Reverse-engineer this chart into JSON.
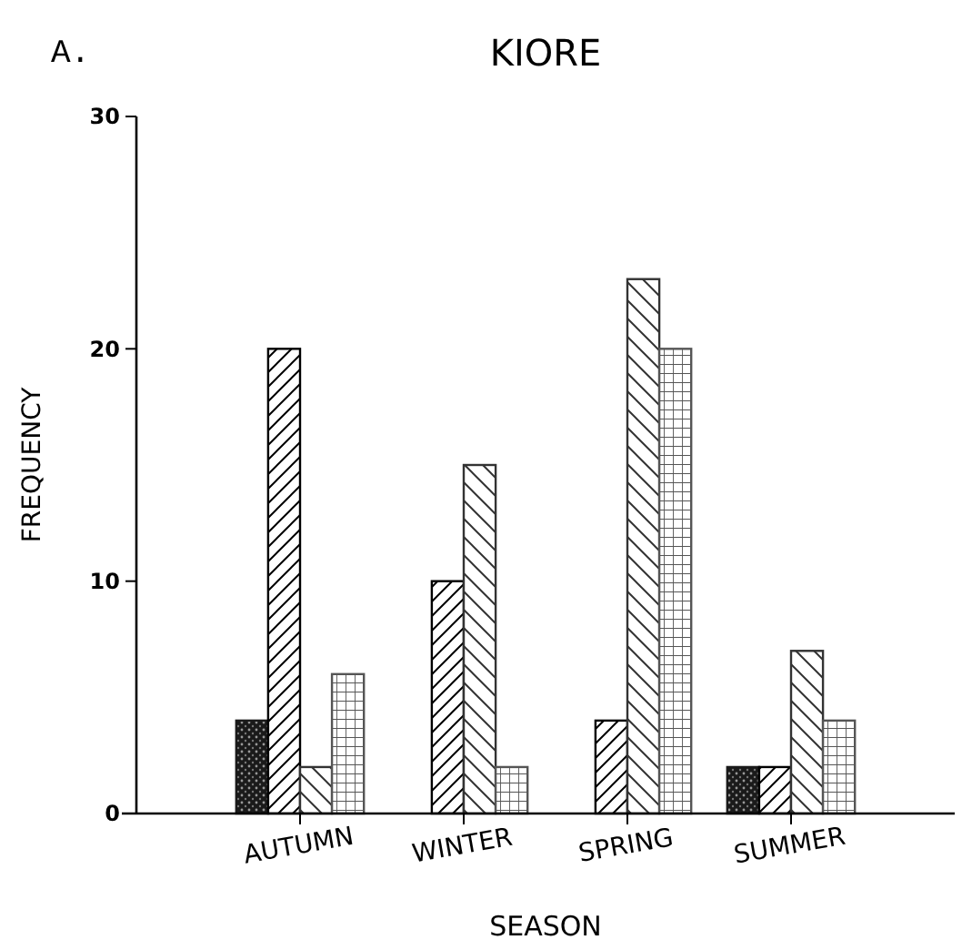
{
  "chart_data": {
    "type": "bar",
    "title": "KIORE",
    "annotations": [
      "A."
    ],
    "xlabel": "SEASON",
    "ylabel": "FREQUENCY",
    "categories": [
      "AUTUMN",
      "WINTER",
      "SPRING",
      "SUMMER"
    ],
    "series": [
      {
        "color": "#1a1a1a",
        "values": [
          4,
          0,
          0,
          2
        ]
      },
      {
        "color": "#000000",
        "values": [
          20,
          10,
          4,
          2
        ]
      },
      {
        "color": "#333333",
        "values": [
          2,
          15,
          23,
          7
        ]
      },
      {
        "color": "#555555",
        "values": [
          6,
          2,
          20,
          4
        ]
      }
    ],
    "ylim": [
      0,
      30
    ],
    "yticks": [
      0,
      10,
      20,
      30
    ],
    "grid": false
  }
}
